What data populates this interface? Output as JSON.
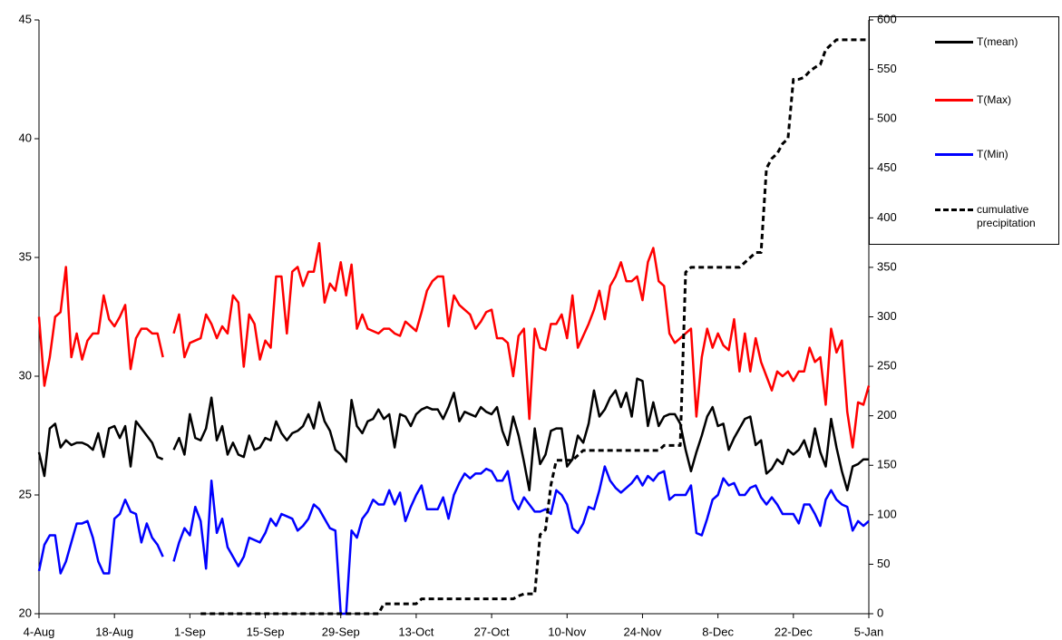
{
  "chart_data": {
    "type": "line",
    "x": [
      0,
      1,
      2,
      3,
      4,
      5,
      6,
      7,
      8,
      9,
      10,
      11,
      12,
      13,
      14,
      15,
      16,
      17,
      18,
      19,
      20,
      21,
      22,
      23,
      24,
      25,
      26,
      27,
      28,
      29,
      30,
      31,
      32,
      33,
      34,
      35,
      36,
      37,
      38,
      39,
      40,
      41,
      42,
      43,
      44,
      45,
      46,
      47,
      48,
      49,
      50,
      51,
      52,
      53,
      54,
      55,
      56,
      57,
      58,
      59,
      60,
      61,
      62,
      63,
      64,
      65,
      66,
      67,
      68,
      69,
      70,
      71,
      72,
      73,
      74,
      75,
      76,
      77,
      78,
      79,
      80,
      81,
      82,
      83,
      84,
      85,
      86,
      87,
      88,
      89,
      90,
      91,
      92,
      93,
      94,
      95,
      96,
      97,
      98,
      99,
      100,
      101,
      102,
      103,
      104,
      105,
      106,
      107,
      108,
      109,
      110,
      111,
      112,
      113,
      114,
      115,
      116,
      117,
      118,
      119,
      120,
      121,
      122,
      123,
      124,
      125,
      126,
      127,
      128,
      129,
      130,
      131,
      132,
      133,
      134,
      135,
      136,
      137,
      138,
      139,
      140,
      141,
      142,
      143,
      144,
      145,
      146,
      147,
      148,
      149,
      150,
      151,
      152,
      153,
      154
    ],
    "xlim": [
      0,
      154
    ],
    "xticks": [
      {
        "value": 0,
        "label": "4-Aug"
      },
      {
        "value": 14,
        "label": "18-Aug"
      },
      {
        "value": 28,
        "label": "1-Sep"
      },
      {
        "value": 42,
        "label": "15-Sep"
      },
      {
        "value": 56,
        "label": "29-Sep"
      },
      {
        "value": 70,
        "label": "13-Oct"
      },
      {
        "value": 84,
        "label": "27-Oct"
      },
      {
        "value": 98,
        "label": "10-Nov"
      },
      {
        "value": 112,
        "label": "24-Nov"
      },
      {
        "value": 126,
        "label": "8-Dec"
      },
      {
        "value": 140,
        "label": "22-Dec"
      },
      {
        "value": 154,
        "label": "5-Jan"
      }
    ],
    "ylim": [
      20,
      45
    ],
    "yticks": [
      20,
      25,
      30,
      35,
      40,
      45
    ],
    "y2lim": [
      0,
      600
    ],
    "y2ticks": [
      0,
      50,
      100,
      150,
      200,
      250,
      300,
      350,
      400,
      450,
      500,
      550,
      600
    ],
    "series": [
      {
        "name": "T(mean)",
        "color": "#000000",
        "linestyle": "solid",
        "values": [
          26.8,
          25.8,
          27.8,
          28.0,
          27.0,
          27.3,
          27.1,
          27.2,
          27.2,
          27.1,
          26.9,
          27.6,
          26.6,
          27.8,
          27.9,
          27.4,
          27.9,
          26.2,
          28.1,
          27.8,
          27.5,
          27.2,
          26.6,
          26.5,
          null,
          26.9,
          27.4,
          26.7,
          28.4,
          27.4,
          27.3,
          27.8,
          29.1,
          27.3,
          27.9,
          26.7,
          27.2,
          26.7,
          26.6,
          27.5,
          26.9,
          27.0,
          27.4,
          27.3,
          28.1,
          27.6,
          27.3,
          27.6,
          27.7,
          27.9,
          28.4,
          27.8,
          28.9,
          28.1,
          27.7,
          26.9,
          26.7,
          26.4,
          29.0,
          27.9,
          27.6,
          28.1,
          28.2,
          28.6,
          28.2,
          28.4,
          27.0,
          28.4,
          28.3,
          27.9,
          28.4,
          28.6,
          28.7,
          28.6,
          28.6,
          28.2,
          28.7,
          29.3,
          28.1,
          28.5,
          28.4,
          28.3,
          28.7,
          28.5,
          28.4,
          28.7,
          27.7,
          27.1,
          28.3,
          27.5,
          26.4,
          25.2,
          27.8,
          26.3,
          26.7,
          27.7,
          27.8,
          27.8,
          26.2,
          26.5,
          27.5,
          27.2,
          28.0,
          29.4,
          28.3,
          28.6,
          29.1,
          29.4,
          28.7,
          29.3,
          28.3,
          29.9,
          29.8,
          27.9,
          28.9,
          27.9,
          28.3,
          28.4,
          28.4,
          28.0,
          26.9,
          26.0,
          26.8,
          27.5,
          28.3,
          28.7,
          27.9,
          28.0,
          26.9,
          27.4,
          27.8,
          28.2,
          28.3,
          27.1,
          27.3,
          25.9,
          26.1,
          26.5,
          26.3,
          26.9,
          26.7,
          26.9,
          27.3,
          26.6,
          27.8,
          26.8,
          26.2,
          28.2,
          27.0,
          26.0,
          25.2,
          26.2,
          26.3,
          26.5,
          26.5
        ]
      },
      {
        "name": "T(Max)",
        "color": "#ff0000",
        "linestyle": "solid",
        "values": [
          32.5,
          29.6,
          30.8,
          32.5,
          32.7,
          34.6,
          30.8,
          31.8,
          30.7,
          31.5,
          31.8,
          31.8,
          33.4,
          32.4,
          32.1,
          32.5,
          33.0,
          30.3,
          31.6,
          32.0,
          32.0,
          31.8,
          31.8,
          30.8,
          null,
          31.8,
          32.6,
          30.8,
          31.4,
          31.5,
          31.6,
          32.6,
          32.2,
          31.6,
          32.1,
          31.8,
          33.4,
          33.1,
          30.4,
          32.6,
          32.2,
          30.7,
          31.5,
          31.2,
          34.2,
          34.2,
          31.8,
          34.4,
          34.6,
          33.8,
          34.4,
          34.4,
          35.6,
          33.1,
          33.9,
          33.6,
          34.8,
          33.4,
          34.7,
          32.0,
          32.6,
          32.0,
          31.9,
          31.8,
          32.0,
          32.0,
          31.8,
          31.7,
          32.3,
          32.1,
          31.9,
          32.7,
          33.6,
          34.0,
          34.2,
          34.2,
          32.1,
          33.4,
          33.0,
          32.8,
          32.6,
          32.0,
          32.3,
          32.7,
          32.8,
          31.6,
          31.6,
          31.4,
          30.0,
          31.7,
          32.0,
          28.2,
          32.0,
          31.2,
          31.1,
          32.2,
          32.2,
          32.6,
          31.6,
          33.4,
          31.2,
          31.7,
          32.2,
          32.8,
          33.6,
          32.4,
          33.8,
          34.2,
          34.8,
          34.0,
          34.0,
          34.2,
          33.2,
          34.8,
          35.4,
          34.0,
          33.8,
          31.8,
          31.4,
          31.6,
          31.8,
          32.0,
          28.3,
          30.8,
          32.0,
          31.2,
          31.8,
          31.3,
          31.1,
          32.4,
          30.2,
          31.8,
          30.2,
          31.6,
          30.6,
          30.0,
          29.4,
          30.2,
          30.0,
          30.2,
          29.8,
          30.2,
          30.2,
          31.2,
          30.6,
          30.8,
          28.8,
          32.0,
          31.0,
          31.5,
          28.5,
          27.0,
          28.9,
          28.8,
          29.6
        ]
      },
      {
        "name": "T(Min)",
        "color": "#0000ff",
        "linestyle": "solid",
        "values": [
          21.8,
          22.9,
          23.3,
          23.3,
          21.7,
          22.2,
          23.0,
          23.8,
          23.8,
          23.9,
          23.2,
          22.2,
          21.7,
          21.7,
          24.0,
          24.2,
          24.8,
          24.3,
          24.2,
          23.0,
          23.8,
          23.2,
          22.9,
          22.4,
          null,
          22.2,
          23.0,
          23.6,
          23.3,
          24.5,
          23.9,
          21.9,
          25.6,
          23.4,
          24.0,
          22.8,
          22.4,
          22.0,
          22.4,
          23.2,
          23.1,
          23.0,
          23.4,
          24.0,
          23.7,
          24.2,
          24.1,
          24.0,
          23.5,
          23.7,
          24.0,
          24.6,
          24.4,
          24.0,
          23.6,
          23.5,
          20.0,
          20.0,
          23.5,
          23.2,
          24.0,
          24.3,
          24.8,
          24.6,
          24.6,
          25.2,
          24.6,
          25.1,
          23.9,
          24.5,
          25.0,
          25.4,
          24.4,
          24.4,
          24.4,
          24.9,
          24.0,
          25.0,
          25.5,
          25.9,
          25.7,
          25.9,
          25.9,
          26.1,
          26.0,
          25.6,
          25.6,
          26.0,
          24.8,
          24.4,
          24.9,
          24.6,
          24.3,
          24.3,
          24.4,
          24.2,
          25.2,
          25.0,
          24.6,
          23.6,
          23.4,
          23.8,
          24.5,
          24.4,
          25.2,
          26.2,
          25.6,
          25.3,
          25.1,
          25.3,
          25.5,
          25.8,
          25.4,
          25.8,
          25.6,
          25.9,
          26.0,
          24.8,
          25.0,
          25.0,
          25.0,
          25.4,
          23.4,
          23.3,
          24.0,
          24.8,
          25.0,
          25.7,
          25.4,
          25.5,
          25.0,
          25.0,
          25.3,
          25.4,
          24.9,
          24.6,
          24.9,
          24.6,
          24.2,
          24.2,
          24.2,
          23.8,
          24.6,
          24.6,
          24.2,
          23.7,
          24.8,
          25.2,
          24.8,
          24.6,
          24.5,
          23.5,
          23.9,
          23.7,
          23.9
        ]
      },
      {
        "name": "cumulative precipitation",
        "color": "#000000",
        "linestyle": "dashed",
        "axis": "y2",
        "values": [
          null,
          null,
          null,
          null,
          null,
          null,
          null,
          null,
          null,
          null,
          null,
          null,
          null,
          null,
          null,
          null,
          null,
          null,
          null,
          null,
          null,
          null,
          null,
          null,
          null,
          null,
          null,
          null,
          null,
          null,
          0,
          0,
          0,
          0,
          0,
          0,
          0,
          0,
          0,
          0,
          0,
          0,
          0,
          0,
          0,
          0,
          0,
          0,
          0,
          0,
          0,
          0,
          0,
          0,
          0,
          0,
          0,
          0,
          0,
          0,
          0,
          0,
          0,
          0,
          10,
          10,
          10,
          10,
          10,
          10,
          10,
          15,
          15,
          15,
          15,
          15,
          15,
          15,
          15,
          15,
          15,
          15,
          15,
          15,
          15,
          15,
          15,
          15,
          15,
          18,
          20,
          20,
          20,
          80,
          85,
          130,
          155,
          155,
          155,
          155,
          160,
          165,
          165,
          165,
          165,
          165,
          165,
          165,
          165,
          165,
          165,
          165,
          165,
          165,
          165,
          165,
          170,
          170,
          170,
          170,
          345,
          350,
          350,
          350,
          350,
          350,
          350,
          350,
          350,
          350,
          350,
          355,
          360,
          365,
          365,
          450,
          460,
          465,
          475,
          480,
          540,
          540,
          542,
          548,
          552,
          555,
          570,
          575,
          580,
          580,
          580,
          580,
          580,
          580,
          580
        ]
      }
    ]
  }
}
